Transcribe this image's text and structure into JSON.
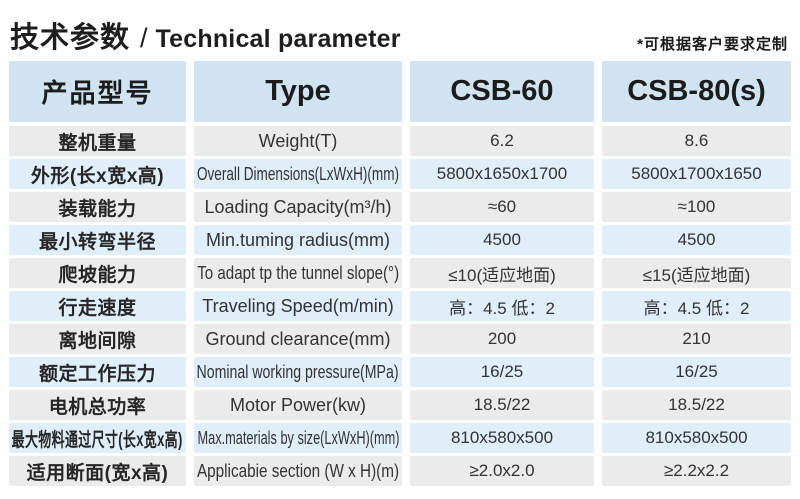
{
  "title": {
    "cn": "技术参数",
    "sep": "/",
    "en": "Technical parameter"
  },
  "note": "*可根据客户要求定制",
  "colors": {
    "header_bg": "#cfe3f0",
    "row_blue": "#dfeef9",
    "row_gray": "#ebebeb",
    "text_dark": "#1c1c1c"
  },
  "table": {
    "header": {
      "product_model": "产品型号",
      "type": "Type",
      "model_1": "CSB-60",
      "model_2": "CSB-80(s)"
    },
    "rows": [
      {
        "cn": "整机重量",
        "en": "Weight(T)",
        "csb60": "6.2",
        "csb80": "8.6"
      },
      {
        "cn": "外形(长x宽x高)",
        "en": "Overall Dimensions(LxWxH)(mm)",
        "csb60": "5800x1650x1700",
        "csb80": "5800x1700x1650"
      },
      {
        "cn": "装载能力",
        "en": "Loading Capacity(m³/h)",
        "csb60": "≈60",
        "csb80": "≈100"
      },
      {
        "cn": "最小转弯半径",
        "en": "Min.tuming radius(mm)",
        "csb60": "4500",
        "csb80": "4500"
      },
      {
        "cn": "爬坡能力",
        "en": "To adapt tp the tunnel slope(°)",
        "csb60": "≤10(适应地面)",
        "csb80": "≤15(适应地面)"
      },
      {
        "cn": "行走速度",
        "en": "Traveling Speed(m/min)",
        "csb60": "高：4.5 低：2",
        "csb80": "高：4.5 低：2"
      },
      {
        "cn": "离地间隙",
        "en": "Ground clearance(mm)",
        "csb60": "200",
        "csb80": "210"
      },
      {
        "cn": "额定工作压力",
        "en": "Nominal working pressure(MPa)",
        "csb60": "16/25",
        "csb80": "16/25"
      },
      {
        "cn": "电机总功率",
        "en": "Motor Power(kw)",
        "csb60": "18.5/22",
        "csb80": "18.5/22"
      },
      {
        "cn": "最大物料通过尺寸(长x宽x高)",
        "en": "Max.materials by size(LxWxH)(mm)",
        "csb60": "810x580x500",
        "csb80": "810x580x500"
      },
      {
        "cn": "适用断面(宽x高)",
        "en": "Applicabie section (W x H)(m)",
        "csb60": "≥2.0x2.0",
        "csb80": "≥2.2x2.2"
      }
    ]
  }
}
